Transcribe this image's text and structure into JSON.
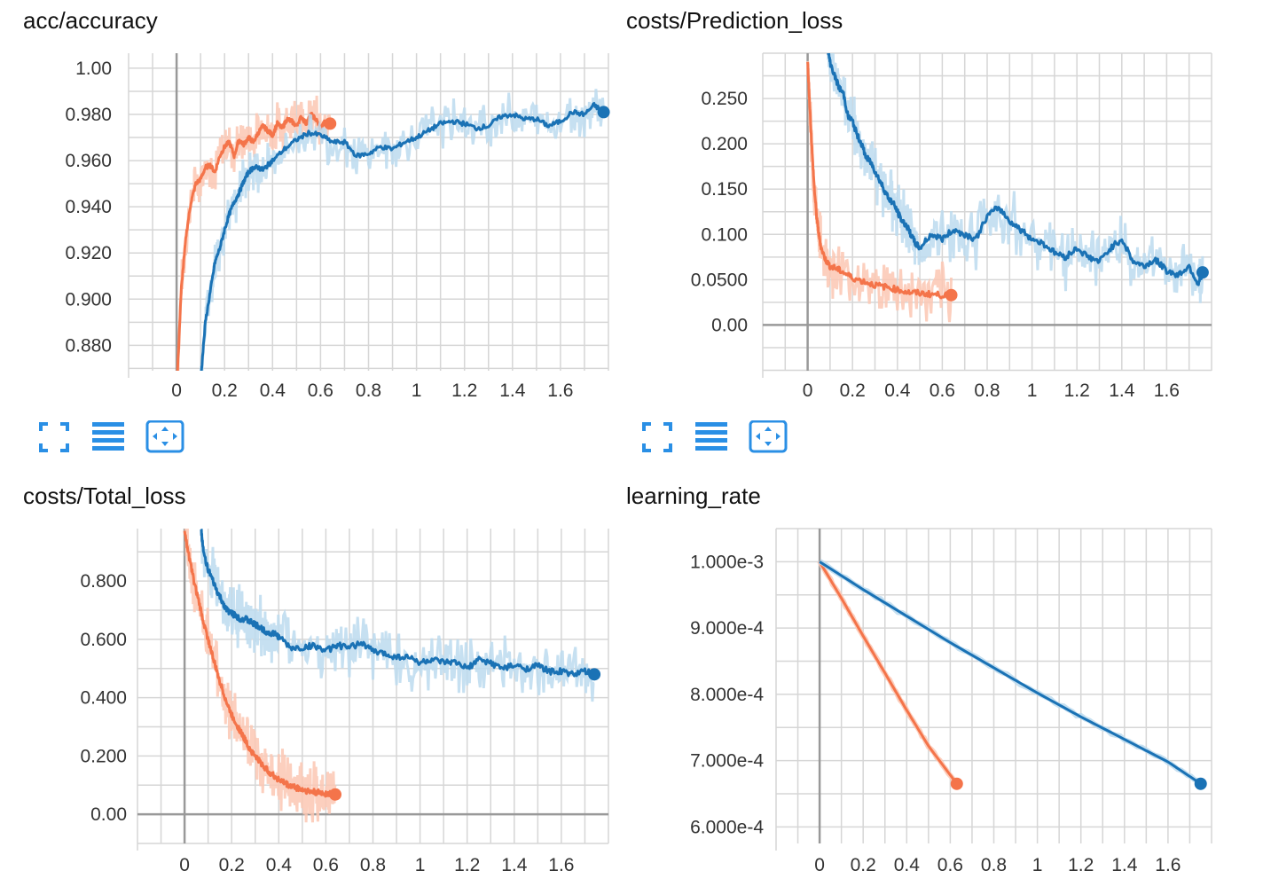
{
  "colors": {
    "orange": "#f4744a",
    "orange_light": "#fcc7b3",
    "blue": "#1a72b5",
    "blue_light": "#bcdbee",
    "grid": "#d6d6d6",
    "axis": "#999999",
    "icon": "#2a8fe5"
  },
  "panels": [
    {
      "title": "acc/accuracy",
      "icons": [
        "fit-icon",
        "data-icon",
        "pan-icon"
      ]
    },
    {
      "title": "costs/Prediction_loss",
      "icons": [
        "fit-icon",
        "data-icon",
        "pan-icon"
      ]
    },
    {
      "title": "costs/Total_loss"
    },
    {
      "title": "learning_rate"
    }
  ],
  "chart_data": [
    {
      "type": "line",
      "title": "acc/accuracy",
      "xlim": [
        -0.2,
        1.8
      ],
      "ylim": [
        0.869,
        1.0065
      ],
      "xticks": [
        "0",
        "0.2",
        "0.4",
        "0.6",
        "0.8",
        "1",
        "1.2",
        "1.4",
        "1.6"
      ],
      "yticks": [
        "0.880",
        "0.900",
        "0.920",
        "0.940",
        "0.960",
        "0.980",
        "1.00"
      ],
      "grid": true,
      "series": [
        {
          "color": "orange",
          "x": [
            0,
            0.02,
            0.04,
            0.06,
            0.08,
            0.1,
            0.12,
            0.14,
            0.16,
            0.18,
            0.2,
            0.22,
            0.24,
            0.26,
            0.28,
            0.3,
            0.32,
            0.34,
            0.36,
            0.38,
            0.4,
            0.42,
            0.44,
            0.46,
            0.48,
            0.5,
            0.52,
            0.54,
            0.56,
            0.58,
            0.6,
            0.62,
            0.64
          ],
          "y": [
            0.86,
            0.905,
            0.928,
            0.942,
            0.95,
            0.952,
            0.957,
            0.958,
            0.955,
            0.962,
            0.966,
            0.968,
            0.962,
            0.969,
            0.967,
            0.97,
            0.968,
            0.972,
            0.975,
            0.973,
            0.971,
            0.976,
            0.974,
            0.978,
            0.977,
            0.975,
            0.979,
            0.976,
            0.98,
            0.978,
            0.974,
            0.977,
            0.976
          ]
        },
        {
          "color": "blue",
          "x": [
            0.1,
            0.12,
            0.14,
            0.16,
            0.18,
            0.2,
            0.22,
            0.24,
            0.26,
            0.28,
            0.3,
            0.32,
            0.34,
            0.36,
            0.38,
            0.4,
            0.45,
            0.5,
            0.55,
            0.6,
            0.65,
            0.7,
            0.75,
            0.8,
            0.85,
            0.9,
            0.95,
            1,
            1.05,
            1.1,
            1.15,
            1.2,
            1.25,
            1.3,
            1.35,
            1.4,
            1.45,
            1.5,
            1.55,
            1.6,
            1.65,
            1.7,
            1.74,
            1.78
          ],
          "y": [
            0.865,
            0.89,
            0.903,
            0.916,
            0.922,
            0.93,
            0.937,
            0.942,
            0.946,
            0.951,
            0.955,
            0.957,
            0.957,
            0.956,
            0.958,
            0.96,
            0.965,
            0.969,
            0.972,
            0.971,
            0.968,
            0.968,
            0.962,
            0.963,
            0.966,
            0.965,
            0.968,
            0.97,
            0.973,
            0.976,
            0.977,
            0.976,
            0.974,
            0.975,
            0.979,
            0.98,
            0.978,
            0.978,
            0.975,
            0.977,
            0.981,
            0.98,
            0.984,
            0.981
          ]
        }
      ]
    },
    {
      "type": "line",
      "title": "costs/Prediction_loss",
      "xlim": [
        -0.2,
        1.8
      ],
      "ylim": [
        -0.0505,
        0.3
      ],
      "xticks": [
        "0",
        "0.2",
        "0.4",
        "0.6",
        "0.8",
        "1",
        "1.2",
        "1.4",
        "1.6"
      ],
      "yticks": [
        "0.00",
        "0.0500",
        "0.100",
        "0.150",
        "0.200",
        "0.250"
      ],
      "grid": true,
      "series": [
        {
          "color": "orange",
          "x": [
            0,
            0.01,
            0.02,
            0.03,
            0.04,
            0.05,
            0.06,
            0.08,
            0.1,
            0.13,
            0.16,
            0.2,
            0.25,
            0.3,
            0.35,
            0.4,
            0.45,
            0.5,
            0.55,
            0.6,
            0.64
          ],
          "y": [
            0.29,
            0.24,
            0.19,
            0.15,
            0.12,
            0.1,
            0.085,
            0.072,
            0.065,
            0.062,
            0.058,
            0.052,
            0.048,
            0.044,
            0.042,
            0.039,
            0.036,
            0.035,
            0.034,
            0.033,
            0.033
          ]
        },
        {
          "color": "blue",
          "x": [
            0.09,
            0.1,
            0.12,
            0.14,
            0.16,
            0.18,
            0.2,
            0.22,
            0.24,
            0.26,
            0.28,
            0.3,
            0.32,
            0.34,
            0.36,
            0.38,
            0.4,
            0.42,
            0.44,
            0.46,
            0.48,
            0.5,
            0.55,
            0.6,
            0.65,
            0.7,
            0.75,
            0.8,
            0.85,
            0.9,
            0.95,
            1,
            1.05,
            1.1,
            1.15,
            1.2,
            1.25,
            1.3,
            1.35,
            1.4,
            1.45,
            1.5,
            1.55,
            1.6,
            1.65,
            1.7,
            1.74,
            1.76
          ],
          "y": [
            0.305,
            0.29,
            0.275,
            0.262,
            0.255,
            0.23,
            0.225,
            0.21,
            0.2,
            0.185,
            0.18,
            0.17,
            0.16,
            0.15,
            0.14,
            0.135,
            0.125,
            0.115,
            0.11,
            0.1,
            0.09,
            0.085,
            0.1,
            0.095,
            0.105,
            0.1,
            0.095,
            0.12,
            0.13,
            0.115,
            0.105,
            0.095,
            0.09,
            0.08,
            0.075,
            0.085,
            0.075,
            0.07,
            0.085,
            0.095,
            0.07,
            0.065,
            0.072,
            0.06,
            0.055,
            0.065,
            0.045,
            0.058
          ]
        }
      ]
    },
    {
      "type": "line",
      "title": "costs/Total_loss",
      "xlim": [
        -0.2,
        1.8
      ],
      "ylim": [
        -0.1,
        0.98
      ],
      "xticks": [
        "0",
        "0.2",
        "0.4",
        "0.6",
        "0.8",
        "1",
        "1.2",
        "1.4",
        "1.6"
      ],
      "yticks": [
        "0.00",
        "0.200",
        "0.400",
        "0.600",
        "0.800"
      ],
      "grid": true,
      "series": [
        {
          "color": "orange",
          "x": [
            0,
            0.02,
            0.04,
            0.06,
            0.08,
            0.1,
            0.12,
            0.14,
            0.16,
            0.18,
            0.2,
            0.22,
            0.24,
            0.26,
            0.28,
            0.3,
            0.32,
            0.34,
            0.36,
            0.38,
            0.4,
            0.42,
            0.44,
            0.46,
            0.48,
            0.5,
            0.52,
            0.54,
            0.56,
            0.58,
            0.6,
            0.62,
            0.64
          ],
          "y": [
            0.97,
            0.88,
            0.8,
            0.73,
            0.66,
            0.6,
            0.54,
            0.48,
            0.43,
            0.38,
            0.34,
            0.31,
            0.28,
            0.25,
            0.22,
            0.2,
            0.18,
            0.16,
            0.145,
            0.13,
            0.12,
            0.11,
            0.1,
            0.095,
            0.09,
            0.085,
            0.08,
            0.077,
            0.075,
            0.073,
            0.071,
            0.07,
            0.068
          ]
        },
        {
          "color": "blue",
          "x": [
            0.07,
            0.08,
            0.1,
            0.12,
            0.14,
            0.16,
            0.18,
            0.2,
            0.22,
            0.24,
            0.26,
            0.28,
            0.3,
            0.32,
            0.34,
            0.36,
            0.38,
            0.4,
            0.45,
            0.5,
            0.55,
            0.6,
            0.65,
            0.7,
            0.75,
            0.8,
            0.85,
            0.9,
            0.95,
            1,
            1.05,
            1.1,
            1.15,
            1.2,
            1.25,
            1.3,
            1.35,
            1.4,
            1.45,
            1.5,
            1.55,
            1.6,
            1.65,
            1.7,
            1.74
          ],
          "y": [
            0.98,
            0.9,
            0.84,
            0.8,
            0.76,
            0.73,
            0.7,
            0.69,
            0.68,
            0.67,
            0.67,
            0.66,
            0.65,
            0.64,
            0.63,
            0.62,
            0.62,
            0.61,
            0.57,
            0.57,
            0.58,
            0.56,
            0.58,
            0.57,
            0.59,
            0.56,
            0.55,
            0.54,
            0.54,
            0.52,
            0.53,
            0.52,
            0.52,
            0.5,
            0.53,
            0.52,
            0.5,
            0.51,
            0.5,
            0.51,
            0.49,
            0.49,
            0.48,
            0.49,
            0.48
          ]
        }
      ]
    },
    {
      "type": "line",
      "title": "learning_rate",
      "xlim": [
        -0.2,
        1.8
      ],
      "ylim": [
        0.000575,
        0.00105
      ],
      "xticks": [
        "0",
        "0.2",
        "0.4",
        "0.6",
        "0.8",
        "1",
        "1.2",
        "1.4",
        "1.6"
      ],
      "yticks": [
        "6.000e-4",
        "7.000e-4",
        "8.000e-4",
        "9.000e-4",
        "1.000e-3"
      ],
      "grid": true,
      "series": [
        {
          "color": "orange",
          "x": [
            0,
            0.1,
            0.2,
            0.3,
            0.4,
            0.5,
            0.63
          ],
          "y": [
            0.001,
            0.000945,
            0.000888,
            0.000832,
            0.000776,
            0.000722,
            0.000665
          ]
        },
        {
          "color": "blue",
          "x": [
            0,
            0.2,
            0.4,
            0.6,
            0.8,
            1.0,
            1.2,
            1.4,
            1.6,
            1.75
          ],
          "y": [
            0.001,
            0.000958,
            0.000918,
            0.000878,
            0.00084,
            0.000802,
            0.000766,
            0.000732,
            0.000698,
            0.000665
          ]
        }
      ]
    }
  ]
}
